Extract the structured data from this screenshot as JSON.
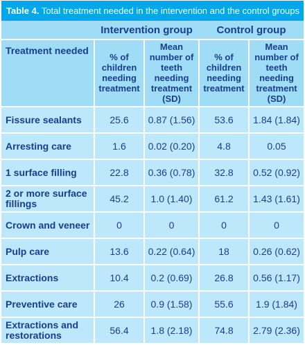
{
  "caption": {
    "label": "Table 4.",
    "text": " Total treatment needed in the intervention and the control groups"
  },
  "groups": [
    "Intervention group",
    "Control group"
  ],
  "row_header": "Treatment needed",
  "subheaders": {
    "pct": "% of children needing treatment",
    "mean": "Mean number of teeth needing treatment (SD)"
  },
  "rows": [
    {
      "label": "Fissure sealants",
      "i_pct": "25.6",
      "i_mean": "0.87 (1.56)",
      "c_pct": "53.6",
      "c_mean": "1.84 (1.84)"
    },
    {
      "label": "Arresting care",
      "i_pct": "1.6",
      "i_mean": "0.02 (0.20)",
      "c_pct": "4.8",
      "c_mean": "0.05"
    },
    {
      "label": "1 surface filling",
      "i_pct": "22.8",
      "i_mean": "0.36 (0.78)",
      "c_pct": "32.8",
      "c_mean": "0.52 (0.92)"
    },
    {
      "label": "2 or more surface fillings",
      "i_pct": "45.2",
      "i_mean": "1.0 (1.40)",
      "c_pct": "61.2",
      "c_mean": "1.43 (1.61)"
    },
    {
      "label": "Crown and veneer",
      "i_pct": "0",
      "i_mean": "0",
      "c_pct": "0",
      "c_mean": "0"
    },
    {
      "label": "Pulp care",
      "i_pct": "13.6",
      "i_mean": "0.22 (0.64)",
      "c_pct": "18",
      "c_mean": "0.26 (0.62)"
    },
    {
      "label": "Extractions",
      "i_pct": "10.4",
      "i_mean": "0.2 (0.69)",
      "c_pct": "26.8",
      "c_mean": "0.56 (1.17)"
    },
    {
      "label": "Preventive care",
      "i_pct": "26",
      "i_mean": "0.9 (1.58)",
      "c_pct": "55.6",
      "c_mean": "1.9 (1.84)"
    },
    {
      "label": "Extractions and restorations",
      "i_pct": "56.4",
      "i_mean": "1.8 (2.18)",
      "c_pct": "74.8",
      "c_mean": "2.79 (2.36)"
    }
  ],
  "colors": {
    "caption_bg": "#00a8e8",
    "header_bg": "#9fdcf6",
    "body_bg": "#bde7fa",
    "text": "#1a3d8f"
  }
}
